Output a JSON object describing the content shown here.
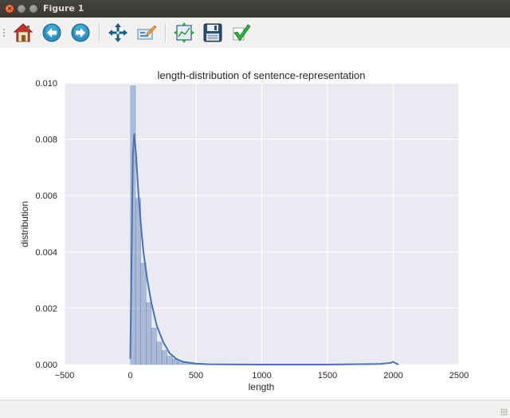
{
  "window": {
    "title": "Figure 1"
  },
  "toolbar": {
    "buttons": [
      {
        "name": "home-button",
        "icon": "home-icon"
      },
      {
        "name": "back-button",
        "icon": "back-arrow-icon"
      },
      {
        "name": "forward-button",
        "icon": "forward-arrow-icon"
      },
      {
        "name": "pan-button",
        "icon": "move-arrows-icon"
      },
      {
        "name": "zoom-button",
        "icon": "zoom-rect-icon"
      },
      {
        "name": "configure-subplots-button",
        "icon": "subplots-icon"
      },
      {
        "name": "save-button",
        "icon": "floppy-disk-icon"
      },
      {
        "name": "edit-axes-button",
        "icon": "checkmark-icon"
      }
    ]
  },
  "chart_data": {
    "type": "bar",
    "title": "length-distribution of sentence-representation",
    "xlabel": "length",
    "ylabel": "distribution",
    "xlim": [
      -500,
      2500
    ],
    "ylim": [
      0,
      0.01
    ],
    "xticks": [
      -500,
      0,
      500,
      1000,
      1500,
      2000,
      2500
    ],
    "xtick_labels": [
      "−500",
      "0",
      "500",
      "1000",
      "1500",
      "2000",
      "2500"
    ],
    "yticks": [
      0,
      0.002,
      0.004,
      0.006,
      0.008,
      0.01
    ],
    "ytick_labels": [
      "0.000",
      "0.002",
      "0.004",
      "0.006",
      "0.008",
      "0.010"
    ],
    "grid": true,
    "histogram": {
      "bin_width": 40,
      "bin_start": 0,
      "densities": [
        0.0099,
        0.0059,
        0.0036,
        0.0022,
        0.0013,
        0.0008,
        0.0005,
        0.0003,
        0.0002,
        0.00012,
        8e-05,
        5e-05,
        4e-05,
        3e-05,
        2e-05,
        1e-05
      ]
    },
    "kde": {
      "x": [
        0,
        10,
        20,
        30,
        45,
        60,
        80,
        100,
        130,
        160,
        200,
        250,
        300,
        350,
        400,
        500,
        600,
        800,
        1000,
        1500,
        1900,
        1980,
        2000,
        2020,
        2040
      ],
      "y": [
        0.0002,
        0.004,
        0.0075,
        0.0082,
        0.0074,
        0.0062,
        0.005,
        0.004,
        0.003,
        0.0022,
        0.0014,
        0.0008,
        0.0004,
        0.0002,
        0.0001,
        3e-05,
        1e-05,
        3e-06,
        1e-06,
        1e-06,
        2e-05,
        6e-05,
        0.0001,
        4e-05,
        0.0
      ]
    },
    "colors": {
      "axes_bg": "#eaeaf2",
      "grid": "#ffffff",
      "bar": "#4c72b0",
      "line": "#4c72b0"
    }
  }
}
